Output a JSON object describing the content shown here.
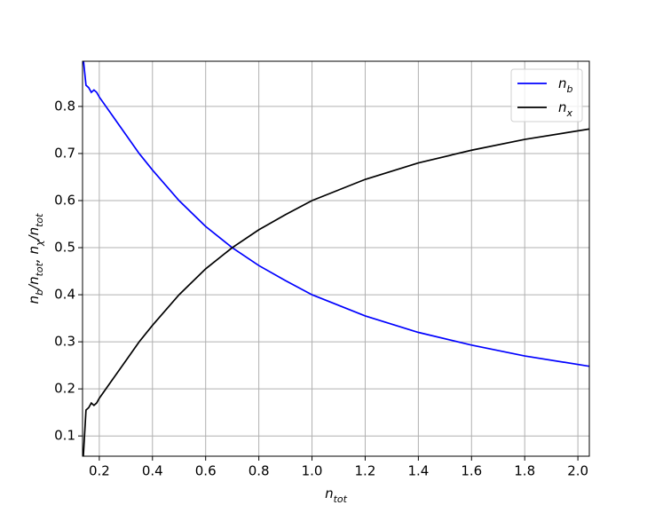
{
  "chart_data": {
    "type": "line",
    "xlabel": [
      "n",
      "tot"
    ],
    "ylabel": [
      "n",
      "b",
      "/n",
      "tot",
      ", n",
      "χ",
      "/n",
      "tot"
    ],
    "x": [
      0.14,
      0.15,
      0.16,
      0.17,
      0.18,
      0.19,
      0.2,
      0.25,
      0.3,
      0.35,
      0.4,
      0.5,
      0.6,
      0.7,
      0.8,
      0.9,
      1.0,
      1.2,
      1.4,
      1.6,
      1.8,
      2.043
    ],
    "series": [
      {
        "name": [
          "n",
          "b"
        ],
        "color": "#0000ff",
        "values": [
          0.9,
          0.845,
          0.84,
          0.83,
          0.835,
          0.83,
          0.82,
          0.78,
          0.74,
          0.7,
          0.665,
          0.6,
          0.545,
          0.5,
          0.462,
          0.43,
          0.4,
          0.355,
          0.32,
          0.293,
          0.27,
          0.248
        ]
      },
      {
        "name": [
          "n",
          "x"
        ],
        "color": "#000000",
        "values": [
          0.057,
          0.155,
          0.16,
          0.17,
          0.165,
          0.17,
          0.18,
          0.22,
          0.26,
          0.3,
          0.335,
          0.4,
          0.455,
          0.5,
          0.538,
          0.57,
          0.6,
          0.645,
          0.68,
          0.707,
          0.73,
          0.752
        ]
      }
    ],
    "xlim": [
      0.137,
      2.043
    ],
    "xticks": [
      0.2,
      0.4,
      0.6,
      0.8,
      {
        "value": 1,
        "label": "1.0"
      },
      1.2,
      1.4,
      1.6,
      1.8,
      {
        "value": 2,
        "label": "2.0"
      }
    ],
    "ylim": [
      0.057,
      0.896
    ],
    "yticks": [
      0.1,
      0.2,
      0.3,
      0.4,
      0.5,
      0.6,
      0.7,
      0.8
    ],
    "grid": true,
    "legend": "upper right"
  }
}
